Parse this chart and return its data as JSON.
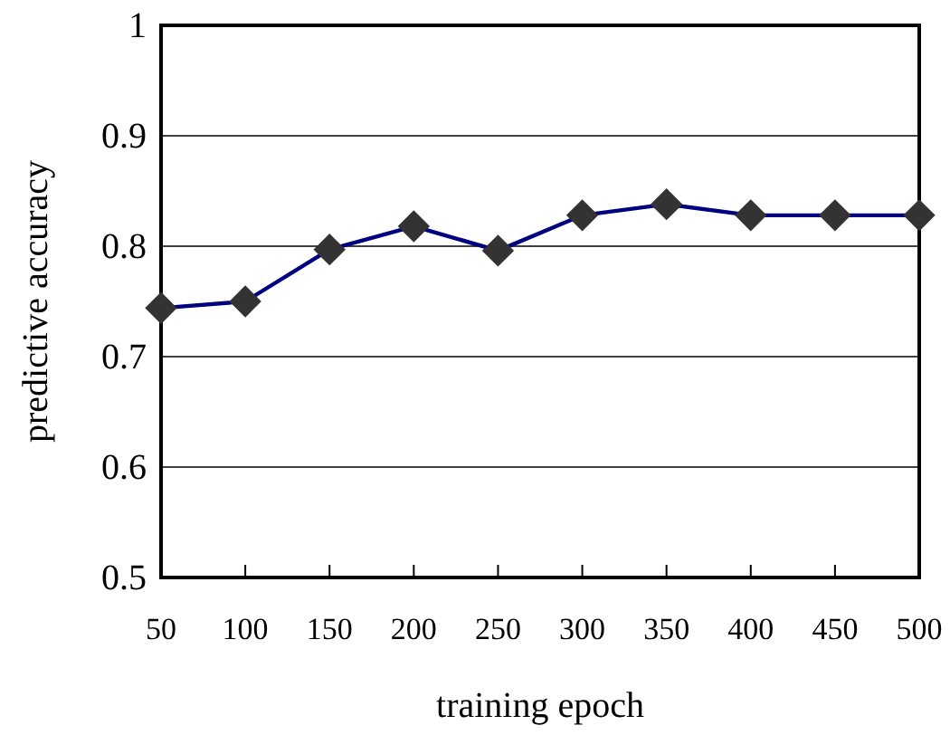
{
  "chart_data": {
    "type": "line",
    "xlabel": "training epoch",
    "ylabel": "predictive accuracy",
    "x": [
      50,
      100,
      150,
      200,
      250,
      300,
      350,
      400,
      450,
      500
    ],
    "series": [
      {
        "color": "#000080",
        "values": [
          0.744,
          0.75,
          0.797,
          0.818,
          0.796,
          0.828,
          0.838,
          0.828,
          0.828,
          0.828
        ]
      }
    ],
    "xlim": [
      50,
      500
    ],
    "xticks": [
      50,
      100,
      150,
      200,
      250,
      300,
      350,
      400,
      450,
      500
    ],
    "ylim": [
      0.5,
      1
    ],
    "yticks": [
      0.5,
      0.6,
      0.7,
      0.8,
      0.9,
      1
    ],
    "grid": "y",
    "marker": "diamond",
    "line_style": "solid"
  }
}
